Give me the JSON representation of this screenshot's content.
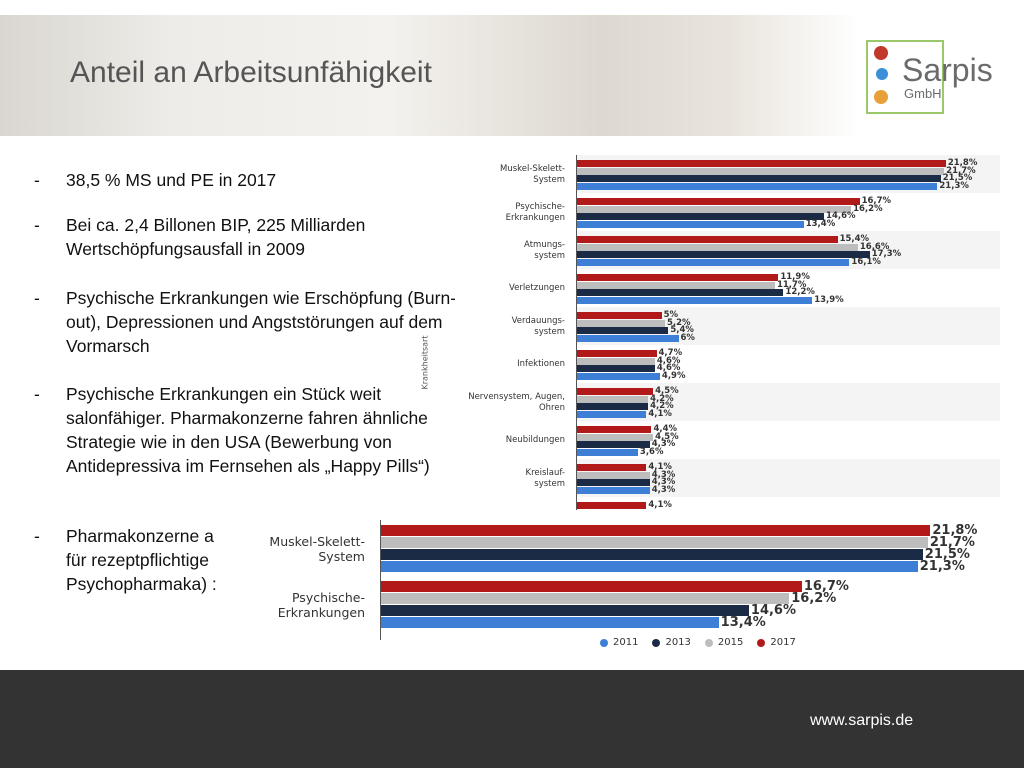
{
  "header": {
    "title": "Anteil an Arbeitsunfähigkeit",
    "logo": {
      "name": "Sarpis",
      "suffix": "GmbH"
    }
  },
  "bullets": [
    "38,5 % MS und PE in 2017",
    "Bei ca. 2,4 Billonen BIP, 225 Milliarden Wertschöpfungsausfall in 2009",
    "Psychische Erkrankungen wie Erschöpfung (Burn-out), Depressionen und Angststörungen auf dem Vormarsch",
    "Psychische Erkrankungen ein Stück weit salonfähiger. Pharmakonzerne fahren ähnliche Strategie wie in den USA (Bewerbung von Antidepressiva im Fernsehen als „Happy Pills“)",
    "Pharmakonzerne a\nfür rezeptpflichtige\nPsychopharmaka) :"
  ],
  "footer": {
    "url": "www.sarpis.de"
  },
  "chart_data": [
    {
      "type": "bar",
      "orientation": "horizontal",
      "ylabel": "Krankheitsart",
      "xlim": [
        0,
        25
      ],
      "categories": [
        "Muskel-Skelett-\nSystem",
        "Psychische-\nErkrankungen",
        "Atmungs-\nsystem",
        "Verletzungen",
        "Verdauungs-\nsystem",
        "Infektionen",
        "Nervensystem, Augen,\nOhren",
        "Neubildungen",
        "Kreislauf-\nsystem",
        null
      ],
      "series": [
        {
          "name": "2011",
          "color": "#3d7fd6",
          "values": [
            21.3,
            13.4,
            16.1,
            13.9,
            6,
            4.9,
            4.1,
            3.6,
            4.3,
            null
          ],
          "value_labels": [
            "21,3%",
            "13,4%",
            "16,1%",
            "13,9%",
            "6%",
            "4,9%",
            "4,1%",
            "3,6%",
            "4,3%",
            null
          ]
        },
        {
          "name": "2013",
          "color": "#1c2b45",
          "values": [
            21.5,
            14.6,
            17.3,
            12.2,
            5.4,
            4.6,
            4.2,
            4.3,
            4.3,
            null
          ],
          "value_labels": [
            "21,5%",
            "14,6%",
            "17,3%",
            "12,2%",
            "5,4%",
            "4,6%",
            "4,2%",
            "4,3%",
            "4,3%",
            null
          ]
        },
        {
          "name": "2015",
          "color": "#bdbdbd",
          "values": [
            21.7,
            16.2,
            16.6,
            11.7,
            5.2,
            4.6,
            4.2,
            4.5,
            4.3,
            null
          ],
          "value_labels": [
            "21,7%",
            "16,2%",
            "16,6%",
            "11,7%",
            "5,2%",
            "4,6%",
            "4,2%",
            "4,5%",
            "4,3%",
            null
          ]
        },
        {
          "name": "2017",
          "color": "#b21a1a",
          "values": [
            21.8,
            16.7,
            15.4,
            11.9,
            5,
            4.7,
            4.5,
            4.4,
            4.1,
            4.1
          ],
          "value_labels": [
            "21,8%",
            "16,7%",
            "15,4%",
            "11,9%",
            "5%",
            "4,7%",
            "4,5%",
            "4,4%",
            "4,1%",
            "4,1%"
          ]
        }
      ]
    },
    {
      "type": "bar",
      "orientation": "horizontal",
      "xlim": [
        0,
        25
      ],
      "legend": "bottom",
      "categories": [
        "Muskel-Skelett-\nSystem",
        "Psychische-\nErkrankungen"
      ],
      "series": [
        {
          "name": "2011",
          "color": "#3d7fd6",
          "values": [
            21.3,
            13.4
          ],
          "value_labels": [
            "21,3%",
            "13,4%"
          ]
        },
        {
          "name": "2013",
          "color": "#1c2b45",
          "values": [
            21.5,
            14.6
          ],
          "value_labels": [
            "21,5%",
            "14,6%"
          ]
        },
        {
          "name": "2015",
          "color": "#bdbdbd",
          "values": [
            21.7,
            16.2
          ],
          "value_labels": [
            "21,7%",
            "16,2%"
          ]
        },
        {
          "name": "2017",
          "color": "#b21a1a",
          "values": [
            21.8,
            16.7
          ],
          "value_labels": [
            "21,8%",
            "16,7%"
          ]
        }
      ]
    }
  ]
}
